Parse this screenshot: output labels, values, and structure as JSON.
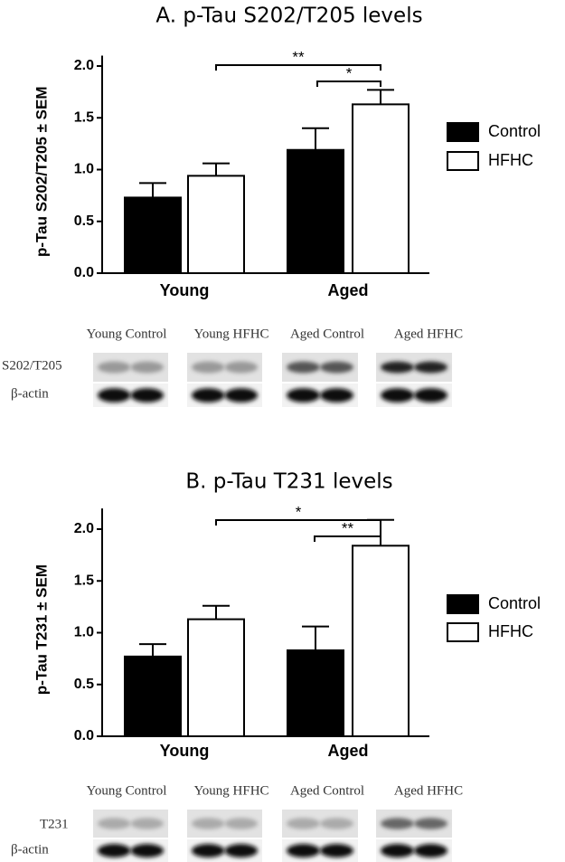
{
  "charts": [
    {
      "chart_data": {
        "type": "bar",
        "title": "A. p-Tau S202/T205 levels",
        "y_label": "p-Tau S202/T205 ± SEM",
        "categories": [
          "Young",
          "Aged"
        ],
        "series": [
          {
            "name": "Control",
            "color": "#000000",
            "values": [
              0.73,
              1.19
            ],
            "errors": [
              0.14,
              0.21
            ]
          },
          {
            "name": "HFHC",
            "color": "#ffffff",
            "values": [
              0.94,
              1.63
            ],
            "errors": [
              0.12,
              0.14
            ]
          }
        ],
        "ylim": [
          0,
          2.1
        ],
        "yticks": [
          {
            "value": 0,
            "label": "0.0"
          },
          {
            "value": 0.5,
            "label": "0.5"
          },
          {
            "value": 1,
            "label": "1.0"
          },
          {
            "value": 1.5,
            "label": "1.5"
          },
          {
            "value": 2,
            "label": "2.0"
          }
        ],
        "annotations": [
          "**",
          "*"
        ]
      },
      "blot": {
        "lanes": [
          "Young Control",
          "Young HFHC",
          "Aged Control",
          "Aged HFHC"
        ],
        "rows": [
          "S202/T205",
          "β-actin"
        ]
      }
    },
    {
      "chart_data": {
        "type": "bar",
        "title": "B. p-Tau T231 levels",
        "y_label": "p-Tau T231 ± SEM",
        "categories": [
          "Young",
          "Aged"
        ],
        "series": [
          {
            "name": "Control",
            "color": "#000000",
            "values": [
              0.77,
              0.83
            ],
            "errors": [
              0.12,
              0.23
            ]
          },
          {
            "name": "HFHC",
            "color": "#ffffff",
            "values": [
              1.13,
              1.84
            ],
            "errors": [
              0.13,
              0.25
            ]
          }
        ],
        "ylim": [
          0,
          2.2
        ],
        "yticks": [
          {
            "value": 0,
            "label": "0.0"
          },
          {
            "value": 0.5,
            "label": "0.5"
          },
          {
            "value": 1,
            "label": "1.0"
          },
          {
            "value": 1.5,
            "label": "1.5"
          },
          {
            "value": 2,
            "label": "2.0"
          }
        ],
        "annotations": [
          "*",
          "**"
        ]
      },
      "blot": {
        "lanes": [
          "Young Control",
          "Young HFHC",
          "Aged Control",
          "Aged HFHC"
        ],
        "rows": [
          "T231",
          "β-actin"
        ]
      }
    }
  ]
}
